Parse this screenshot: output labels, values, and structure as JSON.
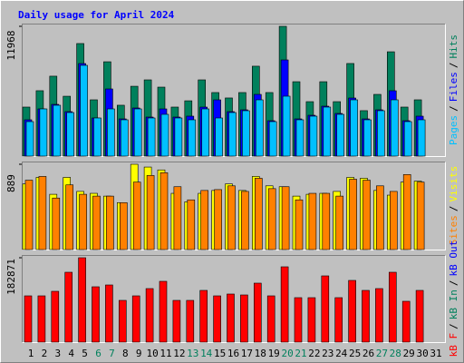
{
  "chart_data": [
    {
      "type": "bar",
      "title": "Daily usage for April 2024",
      "legend_separator": "/",
      "ylim": [
        0,
        11968
      ],
      "yticks": [
        11968
      ],
      "series": [
        {
          "name": "Hits",
          "color": "#00805c",
          "values": [
            4520,
            6030,
            7370,
            5520,
            10380,
            5190,
            8700,
            4690,
            6440,
            7030,
            6360,
            4520,
            5100,
            7030,
            5860,
            5360,
            5860,
            8290,
            5860,
            11968,
            6860,
            5020,
            6860,
            5020,
            8540,
            4190,
            5690,
            9620,
            4520,
            5190,
            null
          ]
        },
        {
          "name": "Files",
          "color": "#0000ff",
          "values": [
            3348,
            4352,
            4770,
            4101,
            8536,
            3515,
            6193,
            3431,
            4436,
            3599,
            4352,
            3599,
            3682,
            4519,
            5189,
            4101,
            4268,
            5691,
            3264,
            8871,
            3431,
            3766,
            4603,
            3933,
            5356,
            3431,
            4268,
            6026,
            3264,
            3682,
            null
          ]
        },
        {
          "name": "Pages",
          "color": "#00c0ff",
          "values": [
            3180,
            4352,
            4687,
            4017,
            8369,
            3515,
            4352,
            3348,
            4352,
            3515,
            3850,
            3515,
            3348,
            4352,
            3515,
            4017,
            4185,
            5189,
            3180,
            5524,
            3348,
            3682,
            4519,
            3850,
            5189,
            3348,
            4185,
            5189,
            3180,
            3348,
            null
          ]
        }
      ]
    },
    {
      "type": "bar",
      "ylim": [
        0,
        889
      ],
      "yticks": [
        889
      ],
      "series": [
        {
          "name": "Visits",
          "color": "#ffff00",
          "values": [
            684,
            752,
            576,
            752,
            606,
            586,
            557,
            489,
            889,
            860,
            830,
            586,
            498,
            586,
            616,
            684,
            616,
            762,
            664,
            655,
            557,
            576,
            586,
            606,
            752,
            743,
            616,
            567,
            703,
            713,
            null
          ]
        },
        {
          "name": "Sites",
          "color": "#ff8000",
          "values": [
            723,
            762,
            537,
            674,
            576,
            557,
            557,
            489,
            703,
            772,
            801,
            655,
            518,
            616,
            625,
            664,
            606,
            743,
            635,
            655,
            518,
            586,
            586,
            557,
            733,
            723,
            664,
            606,
            782,
            703,
            null
          ]
        }
      ]
    },
    {
      "type": "bar",
      "ylim": [
        0,
        182871
      ],
      "yticks": [
        182871
      ],
      "categories": [
        "1",
        "2",
        "3",
        "4",
        "5",
        "6",
        "7",
        "8",
        "9",
        "10",
        "11",
        "12",
        "13",
        "14",
        "15",
        "16",
        "17",
        "18",
        "19",
        "20",
        "21",
        "22",
        "23",
        "24",
        "25",
        "26",
        "27",
        "28",
        "29",
        "30",
        "31"
      ],
      "category_colors": [
        "#000000",
        "#000000",
        "#000000",
        "#000000",
        "#000000",
        "#00805c",
        "#00805c",
        "#000000",
        "#000000",
        "#000000",
        "#000000",
        "#000000",
        "#00805c",
        "#00805c",
        "#000000",
        "#000000",
        "#000000",
        "#000000",
        "#000000",
        "#00805c",
        "#00805c",
        "#000000",
        "#000000",
        "#000000",
        "#000000",
        "#000000",
        "#00805c",
        "#00805c",
        "#000000",
        "#000000",
        "#000000"
      ],
      "legend_extra": [
        {
          "name": "kB In",
          "color": "#00805c"
        },
        {
          "name": "kB Out",
          "color": "#0000ff"
        }
      ],
      "series": [
        {
          "name": "kB F",
          "color": "#ff0000",
          "values": [
            100286,
            100286,
            110118,
            151413,
            182871,
            119950,
            123883,
            90454,
            100286,
            116018,
            131749,
            90454,
            90454,
            112085,
            100286,
            104219,
            102253,
            127816,
            100286,
            163211,
            96354,
            96354,
            143547,
            96354,
            133715,
            112085,
            116018,
            151413,
            88488,
            112085,
            null
          ]
        }
      ]
    }
  ]
}
